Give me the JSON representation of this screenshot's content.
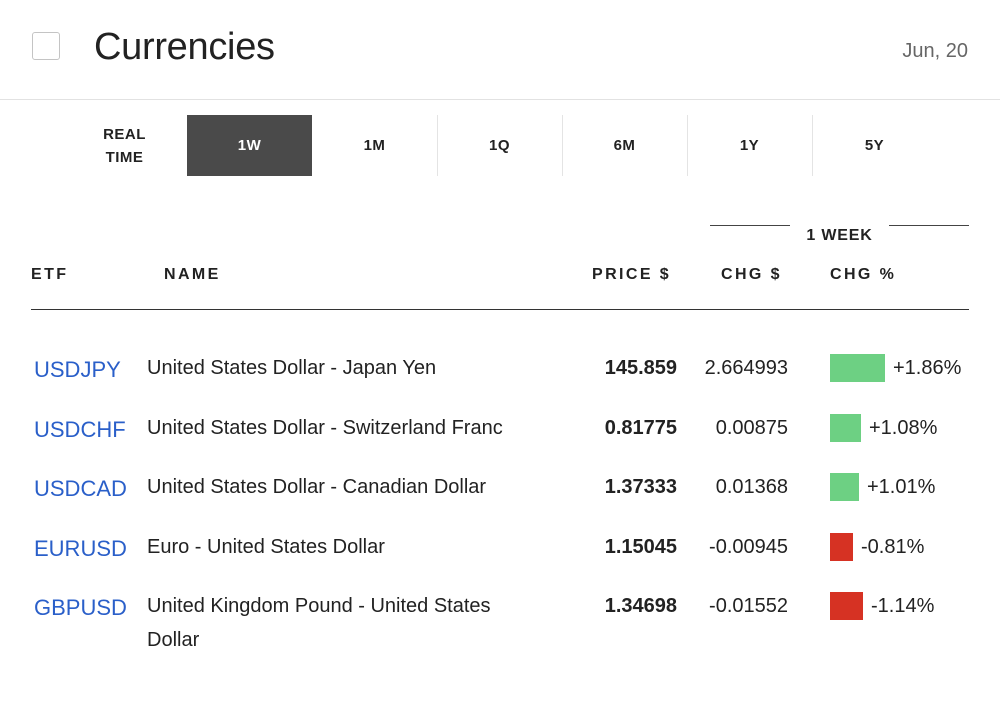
{
  "header": {
    "title": "Currencies",
    "date": "Jun, 20"
  },
  "tabs": [
    {
      "label": "REAL\nTIME",
      "active": false
    },
    {
      "label": "1W",
      "active": true
    },
    {
      "label": "1M",
      "active": false
    },
    {
      "label": "1Q",
      "active": false
    },
    {
      "label": "6M",
      "active": false
    },
    {
      "label": "1Y",
      "active": false
    },
    {
      "label": "5Y",
      "active": false
    }
  ],
  "table": {
    "group_label": "1 WEEK",
    "columns": {
      "etf": "ETF",
      "name": "NAME",
      "price": "PRICE $",
      "chg": "CHG $",
      "pct": "CHG %"
    },
    "rows": [
      {
        "symbol": "USDJPY",
        "name": "United States Dollar - Japan Yen",
        "price": "145.859",
        "chg": "2.664993",
        "pct": "+1.86%",
        "pct_value": 1.86,
        "direction": "up"
      },
      {
        "symbol": "USDCHF",
        "name": "United States Dollar - Switzerland Franc",
        "price": "0.81775",
        "chg": "0.00875",
        "pct": "+1.08%",
        "pct_value": 1.08,
        "direction": "up"
      },
      {
        "symbol": "USDCAD",
        "name": "United States Dollar - Canadian Dollar",
        "price": "1.37333",
        "chg": "0.01368",
        "pct": "+1.01%",
        "pct_value": 1.01,
        "direction": "up"
      },
      {
        "symbol": "EURUSD",
        "name": "Euro - United States Dollar",
        "price": "1.15045",
        "chg": "-0.00945",
        "pct": "-0.81%",
        "pct_value": -0.81,
        "direction": "down"
      },
      {
        "symbol": "GBPUSD",
        "name": "United Kingdom Pound - United States Dollar",
        "price": "1.34698",
        "chg": "-0.01552",
        "pct": "-1.14%",
        "pct_value": -1.14,
        "direction": "down"
      }
    ]
  },
  "colors": {
    "up": "#6dd083",
    "down": "#d63223",
    "link": "#2a5fc9",
    "active_tab": "#4a4a4a"
  }
}
